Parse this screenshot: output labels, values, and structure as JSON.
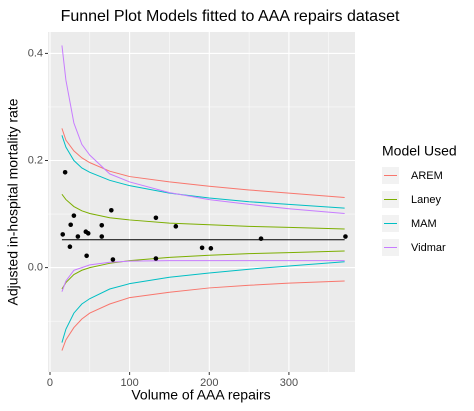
{
  "chart_data": {
    "type": "funnel",
    "title": "Funnel Plot Models fitted to AAA repairs dataset",
    "xlabel": "Volume of AAA repairs",
    "ylabel": "Adjusted in-hospital mortality rate",
    "legend_title": "Model Used",
    "legend_position": "right",
    "grid": true,
    "xlim": [
      -2.5,
      383
    ],
    "ylim": [
      -0.195,
      0.44
    ],
    "xticks": [
      0,
      100,
      200,
      300
    ],
    "yticks": [
      {
        "value": 0,
        "label": "0.0"
      },
      0.2,
      0.4
    ],
    "xminor": [
      50,
      150,
      250,
      350
    ],
    "yminor": [
      -0.1,
      0.1,
      0.3
    ],
    "x": [
      15,
      20,
      30,
      40,
      50,
      75,
      100,
      150,
      200,
      250,
      300,
      370
    ],
    "series": [
      {
        "name": "AREM",
        "color": "#F8766D",
        "upper": [
          0.26,
          0.238,
          0.218,
          0.205,
          0.196,
          0.18,
          0.17,
          0.16,
          0.152,
          0.145,
          0.139,
          0.131
        ],
        "lower": [
          -0.155,
          -0.135,
          -0.112,
          -0.096,
          -0.085,
          -0.068,
          -0.056,
          -0.046,
          -0.038,
          -0.033,
          -0.029,
          -0.025
        ]
      },
      {
        "name": "Laney",
        "color": "#7CAE00",
        "upper": [
          0.137,
          0.127,
          0.114,
          0.106,
          0.101,
          0.093,
          0.089,
          0.083,
          0.08,
          0.077,
          0.075,
          0.072
        ],
        "lower": [
          -0.04,
          -0.028,
          -0.013,
          -0.005,
          0.0,
          0.008,
          0.013,
          0.019,
          0.023,
          0.026,
          0.028,
          0.031
        ]
      },
      {
        "name": "MAM",
        "color": "#00BFC4",
        "upper": [
          0.247,
          0.225,
          0.2,
          0.186,
          0.178,
          0.163,
          0.153,
          0.139,
          0.13,
          0.123,
          0.118,
          0.111
        ],
        "lower": [
          -0.14,
          -0.115,
          -0.085,
          -0.068,
          -0.058,
          -0.04,
          -0.03,
          -0.018,
          -0.01,
          -0.003,
          0.003,
          0.011
        ]
      },
      {
        "name": "Vidmar",
        "color": "#C77CFF",
        "upper": [
          0.415,
          0.35,
          0.27,
          0.23,
          0.21,
          0.175,
          0.16,
          0.14,
          0.127,
          0.118,
          0.11,
          0.101
        ],
        "lower": [
          -0.045,
          -0.025,
          -0.005,
          0.0,
          0.005,
          0.01,
          0.012,
          0.013,
          0.013,
          0.013,
          0.013,
          0.013
        ]
      }
    ],
    "mean": 0.052,
    "points": {
      "color": "#000000",
      "x": [
        16,
        19,
        25,
        26,
        30,
        35,
        45,
        48,
        46,
        65,
        65,
        77,
        79,
        133,
        133,
        158,
        191,
        202,
        265,
        371
      ],
      "y": [
        0.062,
        0.178,
        0.039,
        0.08,
        0.097,
        0.058,
        0.067,
        0.064,
        0.022,
        0.079,
        0.058,
        0.107,
        0.015,
        0.093,
        0.017,
        0.077,
        0.037,
        0.036,
        0.054,
        0.058
      ]
    }
  }
}
